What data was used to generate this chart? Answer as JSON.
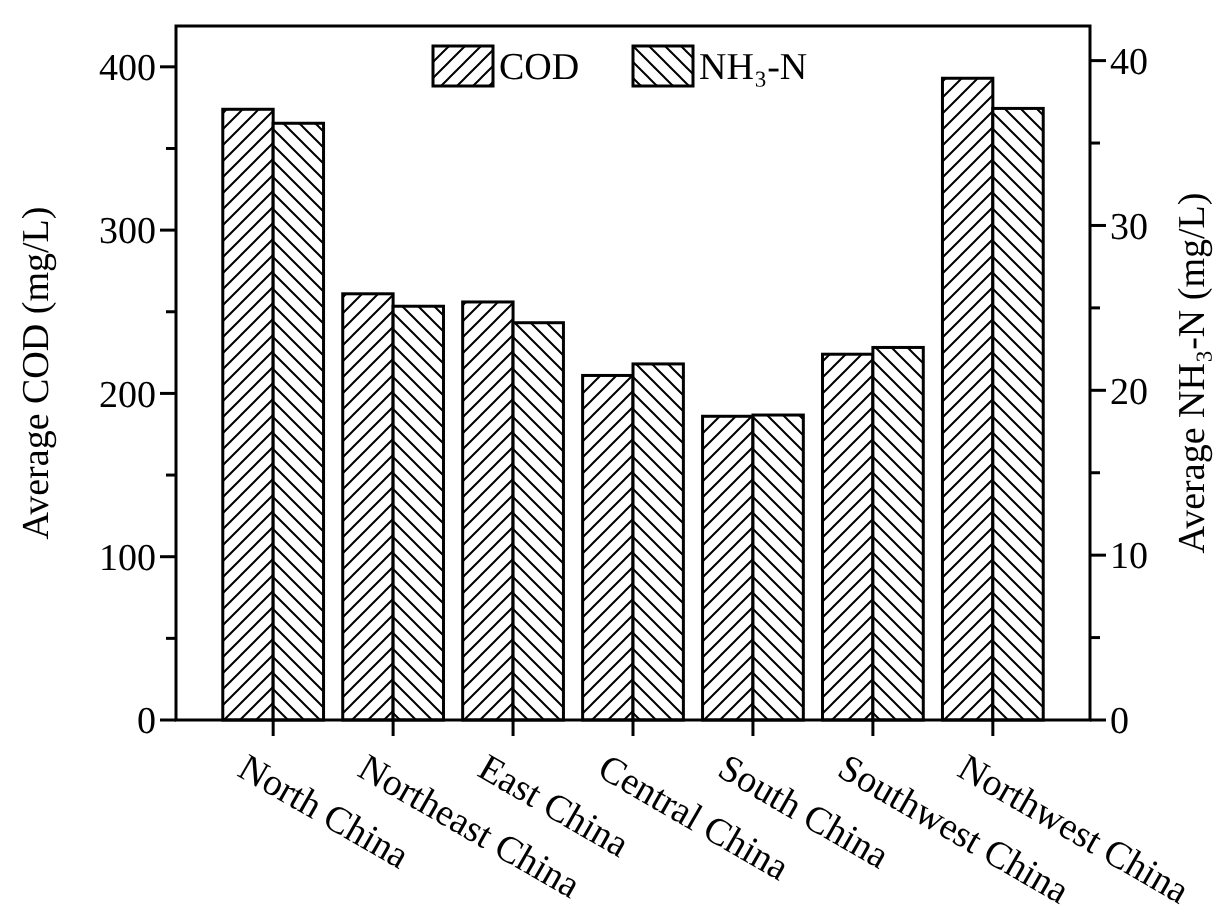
{
  "chart_data": {
    "type": "bar",
    "categories": [
      "North China",
      "Northeast China",
      "East China",
      "Central China",
      "South China",
      "Southwest China",
      "Northwest China"
    ],
    "series": [
      {
        "name": "COD",
        "color": "#000000",
        "values": [
          374,
          261,
          256,
          211,
          186,
          224,
          393
        ]
      },
      {
        "name": "NH₃-N",
        "color": "#000000",
        "axis": "y2",
        "values": [
          36.2,
          25.1,
          24.1,
          21.6,
          18.5,
          22.6,
          37.1
        ]
      }
    ],
    "ylabel": "Average COD (mg/L)",
    "y2label": "Average NH₃-N (mg/L)",
    "ylim": [
      0,
      425
    ],
    "yticks": [
      0,
      {
        "value": 50,
        "label": null
      },
      100,
      {
        "value": 150,
        "label": null
      },
      200,
      {
        "value": 250,
        "label": null
      },
      300,
      {
        "value": 350,
        "label": null
      },
      400
    ],
    "y2lim": [
      0,
      42.1
    ],
    "y2ticks": [
      0,
      {
        "value": 5,
        "label": null
      },
      10,
      {
        "value": 15,
        "label": null
      },
      20,
      {
        "value": 25,
        "label": null
      },
      30,
      {
        "value": 35,
        "label": null
      },
      40
    ],
    "legend": "top",
    "grid": false
  }
}
